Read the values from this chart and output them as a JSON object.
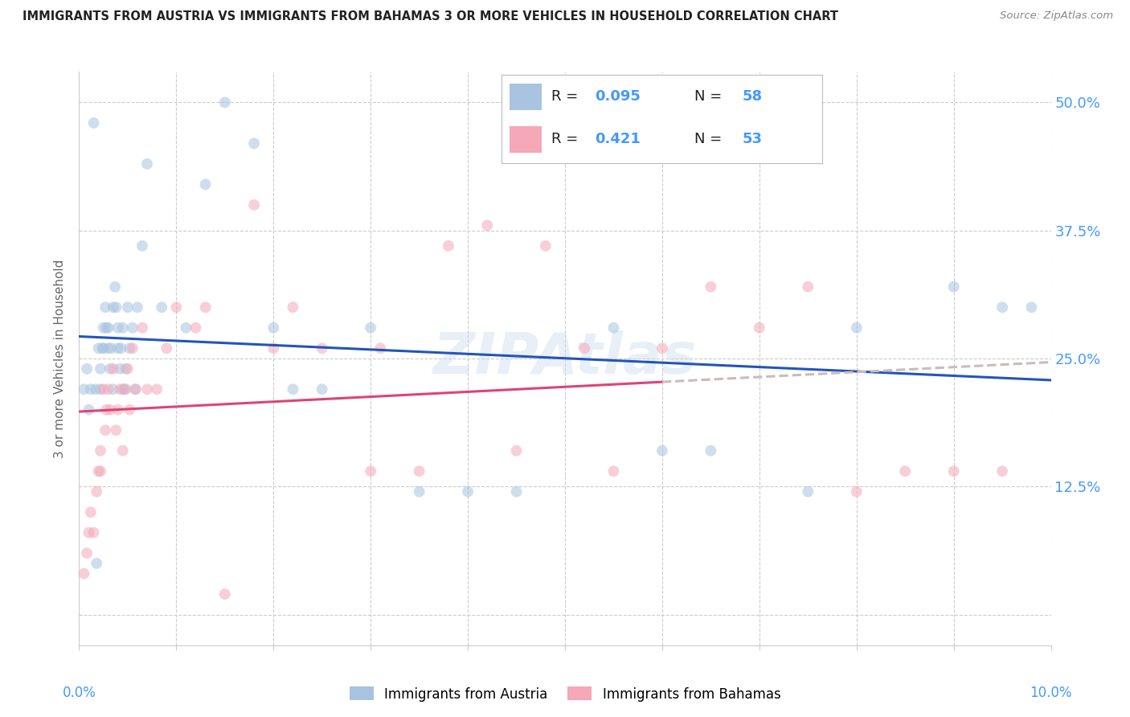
{
  "title": "IMMIGRANTS FROM AUSTRIA VS IMMIGRANTS FROM BAHAMAS 3 OR MORE VEHICLES IN HOUSEHOLD CORRELATION CHART",
  "source": "Source: ZipAtlas.com",
  "ylabel": "3 or more Vehicles in Household",
  "xlim": [
    0.0,
    10.0
  ],
  "ylim": [
    -3.0,
    53.0
  ],
  "yticks": [
    0.0,
    12.5,
    25.0,
    37.5,
    50.0
  ],
  "ytick_labels": [
    "",
    "12.5%",
    "25.0%",
    "37.5%",
    "50.0%"
  ],
  "austria_color": "#a8c4e0",
  "bahamas_color": "#f4a8b8",
  "austria_line_color": "#2255bb",
  "bahamas_line_color": "#dd4477",
  "dashed_line_color": "#ccbbbb",
  "legend_R_austria": "0.095",
  "legend_N_austria": "58",
  "legend_R_bahamas": "0.421",
  "legend_N_bahamas": "53",
  "watermark": "ZIPAtlas",
  "austria_x": [
    0.05,
    0.08,
    0.1,
    0.12,
    0.15,
    0.17,
    0.18,
    0.2,
    0.22,
    0.22,
    0.24,
    0.25,
    0.25,
    0.27,
    0.28,
    0.3,
    0.3,
    0.32,
    0.33,
    0.35,
    0.35,
    0.37,
    0.38,
    0.4,
    0.4,
    0.42,
    0.43,
    0.45,
    0.45,
    0.47,
    0.48,
    0.5,
    0.52,
    0.55,
    0.58,
    0.6,
    0.65,
    0.7,
    0.85,
    1.1,
    1.3,
    1.5,
    1.8,
    2.0,
    2.2,
    2.5,
    3.0,
    3.5,
    4.0,
    4.5,
    5.5,
    6.0,
    6.5,
    7.5,
    8.0,
    9.0,
    9.5,
    9.8
  ],
  "austria_y": [
    22.0,
    24.0,
    20.0,
    22.0,
    48.0,
    22.0,
    5.0,
    26.0,
    22.0,
    24.0,
    26.0,
    26.0,
    28.0,
    30.0,
    28.0,
    26.0,
    28.0,
    24.0,
    26.0,
    30.0,
    22.0,
    32.0,
    30.0,
    28.0,
    26.0,
    24.0,
    26.0,
    22.0,
    28.0,
    22.0,
    24.0,
    30.0,
    26.0,
    28.0,
    22.0,
    30.0,
    36.0,
    44.0,
    30.0,
    28.0,
    42.0,
    50.0,
    46.0,
    28.0,
    22.0,
    22.0,
    28.0,
    12.0,
    12.0,
    12.0,
    28.0,
    16.0,
    16.0,
    12.0,
    28.0,
    32.0,
    30.0,
    30.0
  ],
  "bahamas_x": [
    0.05,
    0.08,
    0.1,
    0.12,
    0.15,
    0.18,
    0.2,
    0.22,
    0.22,
    0.25,
    0.27,
    0.28,
    0.3,
    0.32,
    0.35,
    0.38,
    0.4,
    0.42,
    0.45,
    0.48,
    0.5,
    0.52,
    0.55,
    0.58,
    0.65,
    0.7,
    0.8,
    0.9,
    1.0,
    1.2,
    1.5,
    1.8,
    2.0,
    2.5,
    3.0,
    3.5,
    3.8,
    4.2,
    4.8,
    5.2,
    6.0,
    7.0,
    7.5,
    8.5,
    9.0,
    9.5,
    1.3,
    2.2,
    3.1,
    4.5,
    5.5,
    6.5,
    8.0
  ],
  "bahamas_y": [
    4.0,
    6.0,
    8.0,
    10.0,
    8.0,
    12.0,
    14.0,
    16.0,
    14.0,
    22.0,
    18.0,
    20.0,
    22.0,
    20.0,
    24.0,
    18.0,
    20.0,
    22.0,
    16.0,
    22.0,
    24.0,
    20.0,
    26.0,
    22.0,
    28.0,
    22.0,
    22.0,
    26.0,
    30.0,
    28.0,
    2.0,
    40.0,
    26.0,
    26.0,
    14.0,
    14.0,
    36.0,
    38.0,
    36.0,
    26.0,
    26.0,
    28.0,
    32.0,
    14.0,
    14.0,
    14.0,
    30.0,
    30.0,
    26.0,
    16.0,
    14.0,
    32.0,
    12.0
  ],
  "background_color": "#ffffff",
  "grid_color": "#cccccc",
  "title_color": "#222222",
  "axis_color": "#4499ff",
  "marker_size": 100,
  "marker_alpha": 0.55,
  "line_width": 2.2
}
